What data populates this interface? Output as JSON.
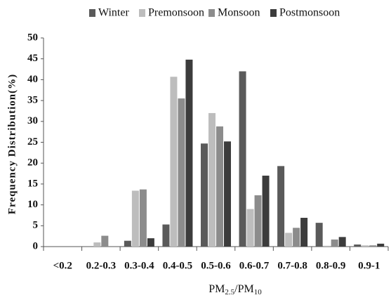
{
  "chart_data": {
    "type": "bar",
    "y_label": "Frequency Distribution(%)",
    "x_label_parts": [
      "PM",
      "2.5",
      "/PM",
      "10"
    ],
    "categories": [
      "<0.2",
      "0.2-0.3",
      "0.3-0.4",
      "0.4-0.5",
      "0.5-0.6",
      "0.6-0.7",
      "0.7-0.8",
      "0.8-0.9",
      "0.9-1"
    ],
    "series": [
      {
        "name": "Winter",
        "color": "#5a5a5a",
        "values": [
          0,
          0,
          1.4,
          5.3,
          24.7,
          42.0,
          19.3,
          5.7,
          0.5
        ]
      },
      {
        "name": "Premonsoon",
        "color": "#bdbdbd",
        "values": [
          0,
          1.0,
          13.4,
          40.7,
          32.0,
          9.0,
          3.3,
          0.2,
          0.3
        ]
      },
      {
        "name": "Monsoon",
        "color": "#8c8c8c",
        "values": [
          0,
          2.6,
          13.7,
          35.5,
          28.8,
          12.3,
          4.5,
          1.7,
          0.3
        ]
      },
      {
        "name": "Postmonsoon",
        "color": "#3c3c3c",
        "values": [
          0,
          0,
          2.0,
          44.8,
          25.2,
          17.0,
          6.9,
          2.3,
          0.7
        ]
      }
    ],
    "ylim": [
      0,
      50
    ],
    "yticks": [
      0,
      5,
      10,
      15,
      20,
      25,
      30,
      35,
      40,
      45,
      50
    ],
    "legend": "top",
    "grid": false
  }
}
